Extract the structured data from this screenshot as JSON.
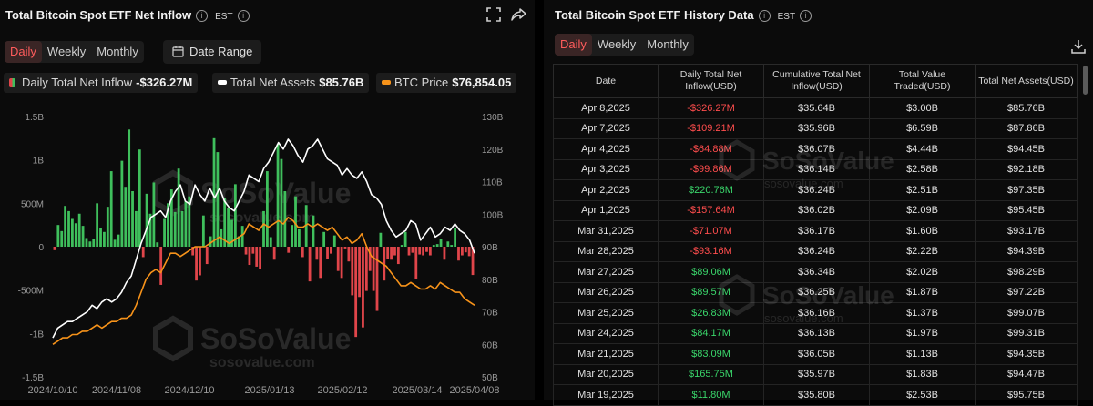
{
  "left": {
    "title": "Total Bitcoin Spot ETF Net Inflow",
    "timezone": "EST",
    "tabs": [
      "Daily",
      "Weekly",
      "Monthly"
    ],
    "active_tab": "Daily",
    "date_range_label": "Date Range",
    "legend": [
      {
        "label": "Daily Total Net Inflow",
        "value": "-$326.27M",
        "color": "#e0454a"
      },
      {
        "label": "Total Net Assets",
        "value": "$85.76B",
        "color": "#ffffff"
      },
      {
        "label": "BTC Price",
        "value": "$76,854.05",
        "color": "#f7931a"
      }
    ],
    "watermark": {
      "brand": "SoSoValue",
      "site": "sosovalue.com"
    }
  },
  "right": {
    "title": "Total Bitcoin Spot ETF History Data",
    "timezone": "EST",
    "tabs": [
      "Daily",
      "Weekly",
      "Monthly"
    ],
    "active_tab": "Daily",
    "columns": [
      "Date",
      "Daily Total Net Inflow(USD)",
      "Cumulative Total Net Inflow(USD)",
      "Total Value Traded(USD)",
      "Total Net Assets(USD)"
    ],
    "rows": [
      [
        "Apr 8,2025",
        "-$326.27M",
        "$35.64B",
        "$3.00B",
        "$85.76B"
      ],
      [
        "Apr 7,2025",
        "-$109.21M",
        "$35.96B",
        "$6.59B",
        "$87.86B"
      ],
      [
        "Apr 4,2025",
        "-$64.88M",
        "$36.07B",
        "$4.44B",
        "$94.45B"
      ],
      [
        "Apr 3,2025",
        "-$99.86M",
        "$36.14B",
        "$2.58B",
        "$92.18B"
      ],
      [
        "Apr 2,2025",
        "$220.76M",
        "$36.24B",
        "$2.51B",
        "$97.35B"
      ],
      [
        "Apr 1,2025",
        "-$157.64M",
        "$36.02B",
        "$2.09B",
        "$95.45B"
      ],
      [
        "Mar 31,2025",
        "-$71.07M",
        "$36.17B",
        "$1.60B",
        "$93.17B"
      ],
      [
        "Mar 28,2025",
        "-$93.16M",
        "$36.24B",
        "$2.22B",
        "$94.39B"
      ],
      [
        "Mar 27,2025",
        "$89.06M",
        "$36.34B",
        "$2.02B",
        "$98.29B"
      ],
      [
        "Mar 26,2025",
        "$89.57M",
        "$36.25B",
        "$1.87B",
        "$97.22B"
      ],
      [
        "Mar 25,2025",
        "$26.83M",
        "$36.16B",
        "$1.37B",
        "$99.07B"
      ],
      [
        "Mar 24,2025",
        "$84.17M",
        "$36.13B",
        "$1.97B",
        "$99.31B"
      ],
      [
        "Mar 21,2025",
        "$83.09M",
        "$36.05B",
        "$1.13B",
        "$94.35B"
      ],
      [
        "Mar 20,2025",
        "$165.75M",
        "$35.97B",
        "$1.83B",
        "$94.47B"
      ],
      [
        "Mar 19,2025",
        "$11.80M",
        "$35.80B",
        "$2.53B",
        "$95.75B"
      ]
    ]
  },
  "chart_data": {
    "type": "bar",
    "title": "Total Bitcoin Spot ETF Net Inflow",
    "x_ticks": [
      "2024/10/10",
      "2024/11/08",
      "2024/12/10",
      "2025/01/13",
      "2025/02/12",
      "2025/03/14",
      "2025/04/08"
    ],
    "y_left_ticks": [
      "1.5B",
      "1B",
      "500M",
      "0",
      "-500M",
      "-1B",
      "-1.5B"
    ],
    "y_left_range": [
      -1500,
      1500
    ],
    "y_left_unit": "M",
    "y_right_ticks": [
      "130B",
      "120B",
      "110B",
      "100B",
      "90B",
      "80B",
      "70B",
      "60B",
      "50B"
    ],
    "y_right_range": [
      50,
      130
    ],
    "grid": false,
    "series": [
      {
        "name": "Daily Total Net Inflow",
        "kind": "bar",
        "pos_color": "#3fbf5c",
        "neg_color": "#e0454a",
        "values": [
          -40,
          250,
          180,
          470,
          410,
          320,
          270,
          380,
          240,
          100,
          60,
          90,
          500,
          220,
          170,
          460,
          870,
          80,
          140,
          990,
          690,
          1350,
          640,
          410,
          1120,
          -120,
          610,
          380,
          740,
          50,
          -440,
          320,
          500,
          660,
          400,
          900,
          410,
          520,
          580,
          -100,
          -390,
          -330,
          360,
          -200,
          120,
          1250,
          1090,
          200,
          560,
          450,
          310,
          720,
          120,
          240,
          -90,
          -210,
          -80,
          -230,
          -260,
          410,
          870,
          110,
          -150,
          1180,
          1010,
          640,
          -70,
          250,
          580,
          200,
          -120,
          480,
          -400,
          360,
          -150,
          -360,
          170,
          -140,
          -80,
          130,
          -280,
          -360,
          -20,
          -170,
          -560,
          -1040,
          -580,
          -930,
          -510,
          -280,
          -510,
          -740,
          160,
          -390,
          -140,
          -150,
          -100,
          -200,
          20,
          170,
          -100,
          -70,
          -370,
          -90,
          -100,
          -60,
          -100,
          20,
          30,
          90,
          -150,
          60,
          20,
          220,
          -160,
          -100,
          -65,
          -109,
          -326
        ]
      },
      {
        "name": "Total Net Assets",
        "kind": "line",
        "color": "#ffffff",
        "axis": "right",
        "values": [
          62,
          65,
          66,
          67,
          67,
          68,
          69,
          70,
          72,
          71,
          73,
          74,
          73,
          74,
          76,
          79,
          81,
          86,
          91,
          95,
          99,
          100,
          101,
          99,
          104,
          107,
          109,
          104,
          103,
          109,
          106,
          104,
          108,
          105,
          108,
          104,
          102,
          101,
          104,
          107,
          112,
          111,
          110,
          114,
          116,
          119,
          122,
          120,
          123,
          121,
          118,
          116,
          120,
          121,
          123,
          120,
          117,
          116,
          115,
          112,
          114,
          112,
          111,
          113,
          110,
          106,
          105,
          103,
          98,
          95,
          93,
          94,
          95,
          98,
          97,
          92,
          94,
          96,
          93,
          94,
          96,
          95,
          97,
          95,
          94,
          92,
          88
        ]
      },
      {
        "name": "BTC Price",
        "kind": "line",
        "color": "#f7931a",
        "axis": "right",
        "values": [
          60,
          61,
          62,
          62,
          63,
          63,
          64,
          64,
          65,
          66,
          65,
          66,
          67,
          67,
          68,
          68,
          69,
          72,
          76,
          80,
          82,
          83,
          82,
          85,
          88,
          88,
          87,
          88,
          89,
          90,
          90,
          90,
          91,
          92,
          93,
          92,
          91,
          92,
          93,
          94,
          97,
          96,
          95,
          97,
          96,
          97,
          98,
          97,
          99,
          98,
          96,
          96,
          97,
          96,
          97,
          96,
          95,
          96,
          94,
          92,
          93,
          91,
          92,
          94,
          90,
          87,
          86,
          85,
          84,
          82,
          80,
          78,
          78,
          79,
          78,
          77,
          77,
          78,
          77,
          79,
          78,
          77,
          76,
          76,
          74,
          73,
          72
        ]
      }
    ]
  }
}
